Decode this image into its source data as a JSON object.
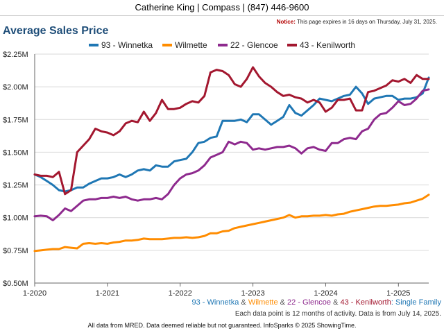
{
  "header": {
    "contact": "Catherine King | Compass | (847) 446-9600",
    "notice_label": "Notice:",
    "notice_text": "This page expires in 16 days on Thursday, July 31, 2025."
  },
  "footer": {
    "subtitle_parts": [
      {
        "text": "93 - Winnetka",
        "color": "#1f77b4"
      },
      {
        "text": " & ",
        "color": "#555555"
      },
      {
        "text": "Wilmette",
        "color": "#ff8c00"
      },
      {
        "text": " & ",
        "color": "#555555"
      },
      {
        "text": "22 - Glencoe",
        "color": "#8e2a8e"
      },
      {
        "text": " & ",
        "color": "#555555"
      },
      {
        "text": "43 - Kenilworth",
        "color": "#a3172f"
      },
      {
        "text": ": Single Family",
        "color": "#1f77b4"
      }
    ],
    "note": "Each data point is 12 months of activity. Data is from July 14, 2025.",
    "disclaimer": "All data from MRED. Data deemed reliable but not guaranteed. InfoSparks © 2025 ShowingTime."
  },
  "chart_data": {
    "type": "line",
    "title": "Average Sales Price",
    "xlabel": "",
    "ylabel": "",
    "ylim": [
      0.5,
      2.25
    ],
    "yunit": "$M",
    "yticks": [
      "$0.50M",
      "$0.75M",
      "$1.00M",
      "$1.25M",
      "$1.50M",
      "$1.75M",
      "$2.00M",
      "$2.25M"
    ],
    "ytick_values": [
      0.5,
      0.75,
      1.0,
      1.25,
      1.5,
      1.75,
      2.0,
      2.25
    ],
    "xticks": [
      "1-2020",
      "1-2021",
      "1-2022",
      "1-2023",
      "1-2024",
      "1-2025"
    ],
    "xtick_values": [
      "2020-01",
      "2021-01",
      "2022-01",
      "2023-01",
      "2024-01",
      "2025-01"
    ],
    "xrange": [
      "2020-01",
      "2025-06"
    ],
    "grid": true,
    "legend_position": "top",
    "x": [
      "2020-01",
      "2020-02",
      "2020-03",
      "2020-04",
      "2020-05",
      "2020-06",
      "2020-07",
      "2020-08",
      "2020-09",
      "2020-10",
      "2020-11",
      "2020-12",
      "2021-01",
      "2021-02",
      "2021-03",
      "2021-04",
      "2021-05",
      "2021-06",
      "2021-07",
      "2021-08",
      "2021-09",
      "2021-10",
      "2021-11",
      "2021-12",
      "2022-01",
      "2022-02",
      "2022-03",
      "2022-04",
      "2022-05",
      "2022-06",
      "2022-07",
      "2022-08",
      "2022-09",
      "2022-10",
      "2022-11",
      "2022-12",
      "2023-01",
      "2023-02",
      "2023-03",
      "2023-04",
      "2023-05",
      "2023-06",
      "2023-07",
      "2023-08",
      "2023-09",
      "2023-10",
      "2023-11",
      "2023-12",
      "2024-01",
      "2024-02",
      "2024-03",
      "2024-04",
      "2024-05",
      "2024-06",
      "2024-07",
      "2024-08",
      "2024-09",
      "2024-10",
      "2024-11",
      "2024-12",
      "2025-01",
      "2025-02",
      "2025-03",
      "2025-04",
      "2025-05",
      "2025-06"
    ],
    "series": [
      {
        "name": "93 - Winnetka",
        "color": "#1f77b4",
        "values": [
          1.33,
          1.31,
          1.28,
          1.25,
          1.21,
          1.2,
          1.21,
          1.23,
          1.23,
          1.26,
          1.28,
          1.3,
          1.3,
          1.31,
          1.33,
          1.31,
          1.33,
          1.36,
          1.37,
          1.36,
          1.4,
          1.39,
          1.39,
          1.43,
          1.44,
          1.45,
          1.5,
          1.57,
          1.58,
          1.61,
          1.62,
          1.74,
          1.74,
          1.74,
          1.75,
          1.73,
          1.79,
          1.79,
          1.75,
          1.71,
          1.74,
          1.77,
          1.86,
          1.8,
          1.78,
          1.82,
          1.86,
          1.91,
          1.9,
          1.89,
          1.91,
          1.93,
          1.94,
          2.0,
          1.95,
          1.87,
          1.91,
          1.92,
          1.93,
          1.93,
          1.9,
          1.91,
          1.91,
          1.92,
          1.95,
          2.07
        ]
      },
      {
        "name": "Wilmette",
        "color": "#ff8c00",
        "values": [
          0.745,
          0.75,
          0.755,
          0.76,
          0.76,
          0.775,
          0.77,
          0.765,
          0.8,
          0.805,
          0.8,
          0.805,
          0.8,
          0.81,
          0.815,
          0.825,
          0.825,
          0.83,
          0.84,
          0.835,
          0.835,
          0.835,
          0.84,
          0.845,
          0.845,
          0.85,
          0.845,
          0.85,
          0.86,
          0.88,
          0.88,
          0.895,
          0.9,
          0.92,
          0.93,
          0.94,
          0.95,
          0.96,
          0.97,
          0.98,
          0.99,
          1.0,
          1.02,
          1.0,
          1.01,
          1.01,
          1.015,
          1.015,
          1.02,
          1.015,
          1.025,
          1.03,
          1.045,
          1.055,
          1.065,
          1.075,
          1.085,
          1.09,
          1.09,
          1.095,
          1.1,
          1.11,
          1.115,
          1.13,
          1.145,
          1.175
        ]
      },
      {
        "name": "22 - Glencoe",
        "color": "#8e2a8e",
        "values": [
          1.01,
          1.015,
          1.01,
          0.98,
          1.02,
          1.07,
          1.05,
          1.09,
          1.13,
          1.14,
          1.14,
          1.15,
          1.15,
          1.16,
          1.15,
          1.16,
          1.14,
          1.13,
          1.14,
          1.14,
          1.15,
          1.14,
          1.18,
          1.25,
          1.3,
          1.33,
          1.34,
          1.36,
          1.4,
          1.46,
          1.48,
          1.5,
          1.58,
          1.56,
          1.58,
          1.57,
          1.52,
          1.53,
          1.52,
          1.53,
          1.54,
          1.54,
          1.55,
          1.53,
          1.49,
          1.53,
          1.54,
          1.52,
          1.51,
          1.57,
          1.57,
          1.6,
          1.61,
          1.6,
          1.66,
          1.68,
          1.75,
          1.79,
          1.8,
          1.84,
          1.89,
          1.86,
          1.87,
          1.91,
          1.97,
          1.98
        ]
      },
      {
        "name": "43 - Kenilworth",
        "color": "#a3172f",
        "values": [
          1.33,
          1.32,
          1.32,
          1.31,
          1.35,
          1.18,
          1.21,
          1.5,
          1.55,
          1.6,
          1.68,
          1.66,
          1.65,
          1.63,
          1.66,
          1.72,
          1.74,
          1.73,
          1.81,
          1.74,
          1.8,
          1.9,
          1.83,
          1.83,
          1.84,
          1.87,
          1.89,
          1.88,
          1.93,
          2.11,
          2.13,
          2.12,
          2.09,
          2.02,
          2.0,
          2.06,
          2.15,
          2.08,
          2.03,
          2.0,
          1.96,
          1.93,
          1.94,
          1.92,
          1.91,
          1.88,
          1.9,
          1.88,
          1.81,
          1.84,
          1.9,
          1.9,
          1.91,
          1.82,
          1.82,
          1.96,
          1.97,
          1.99,
          2.01,
          2.05,
          2.04,
          2.06,
          2.03,
          2.09,
          2.06,
          2.06
        ]
      }
    ]
  }
}
